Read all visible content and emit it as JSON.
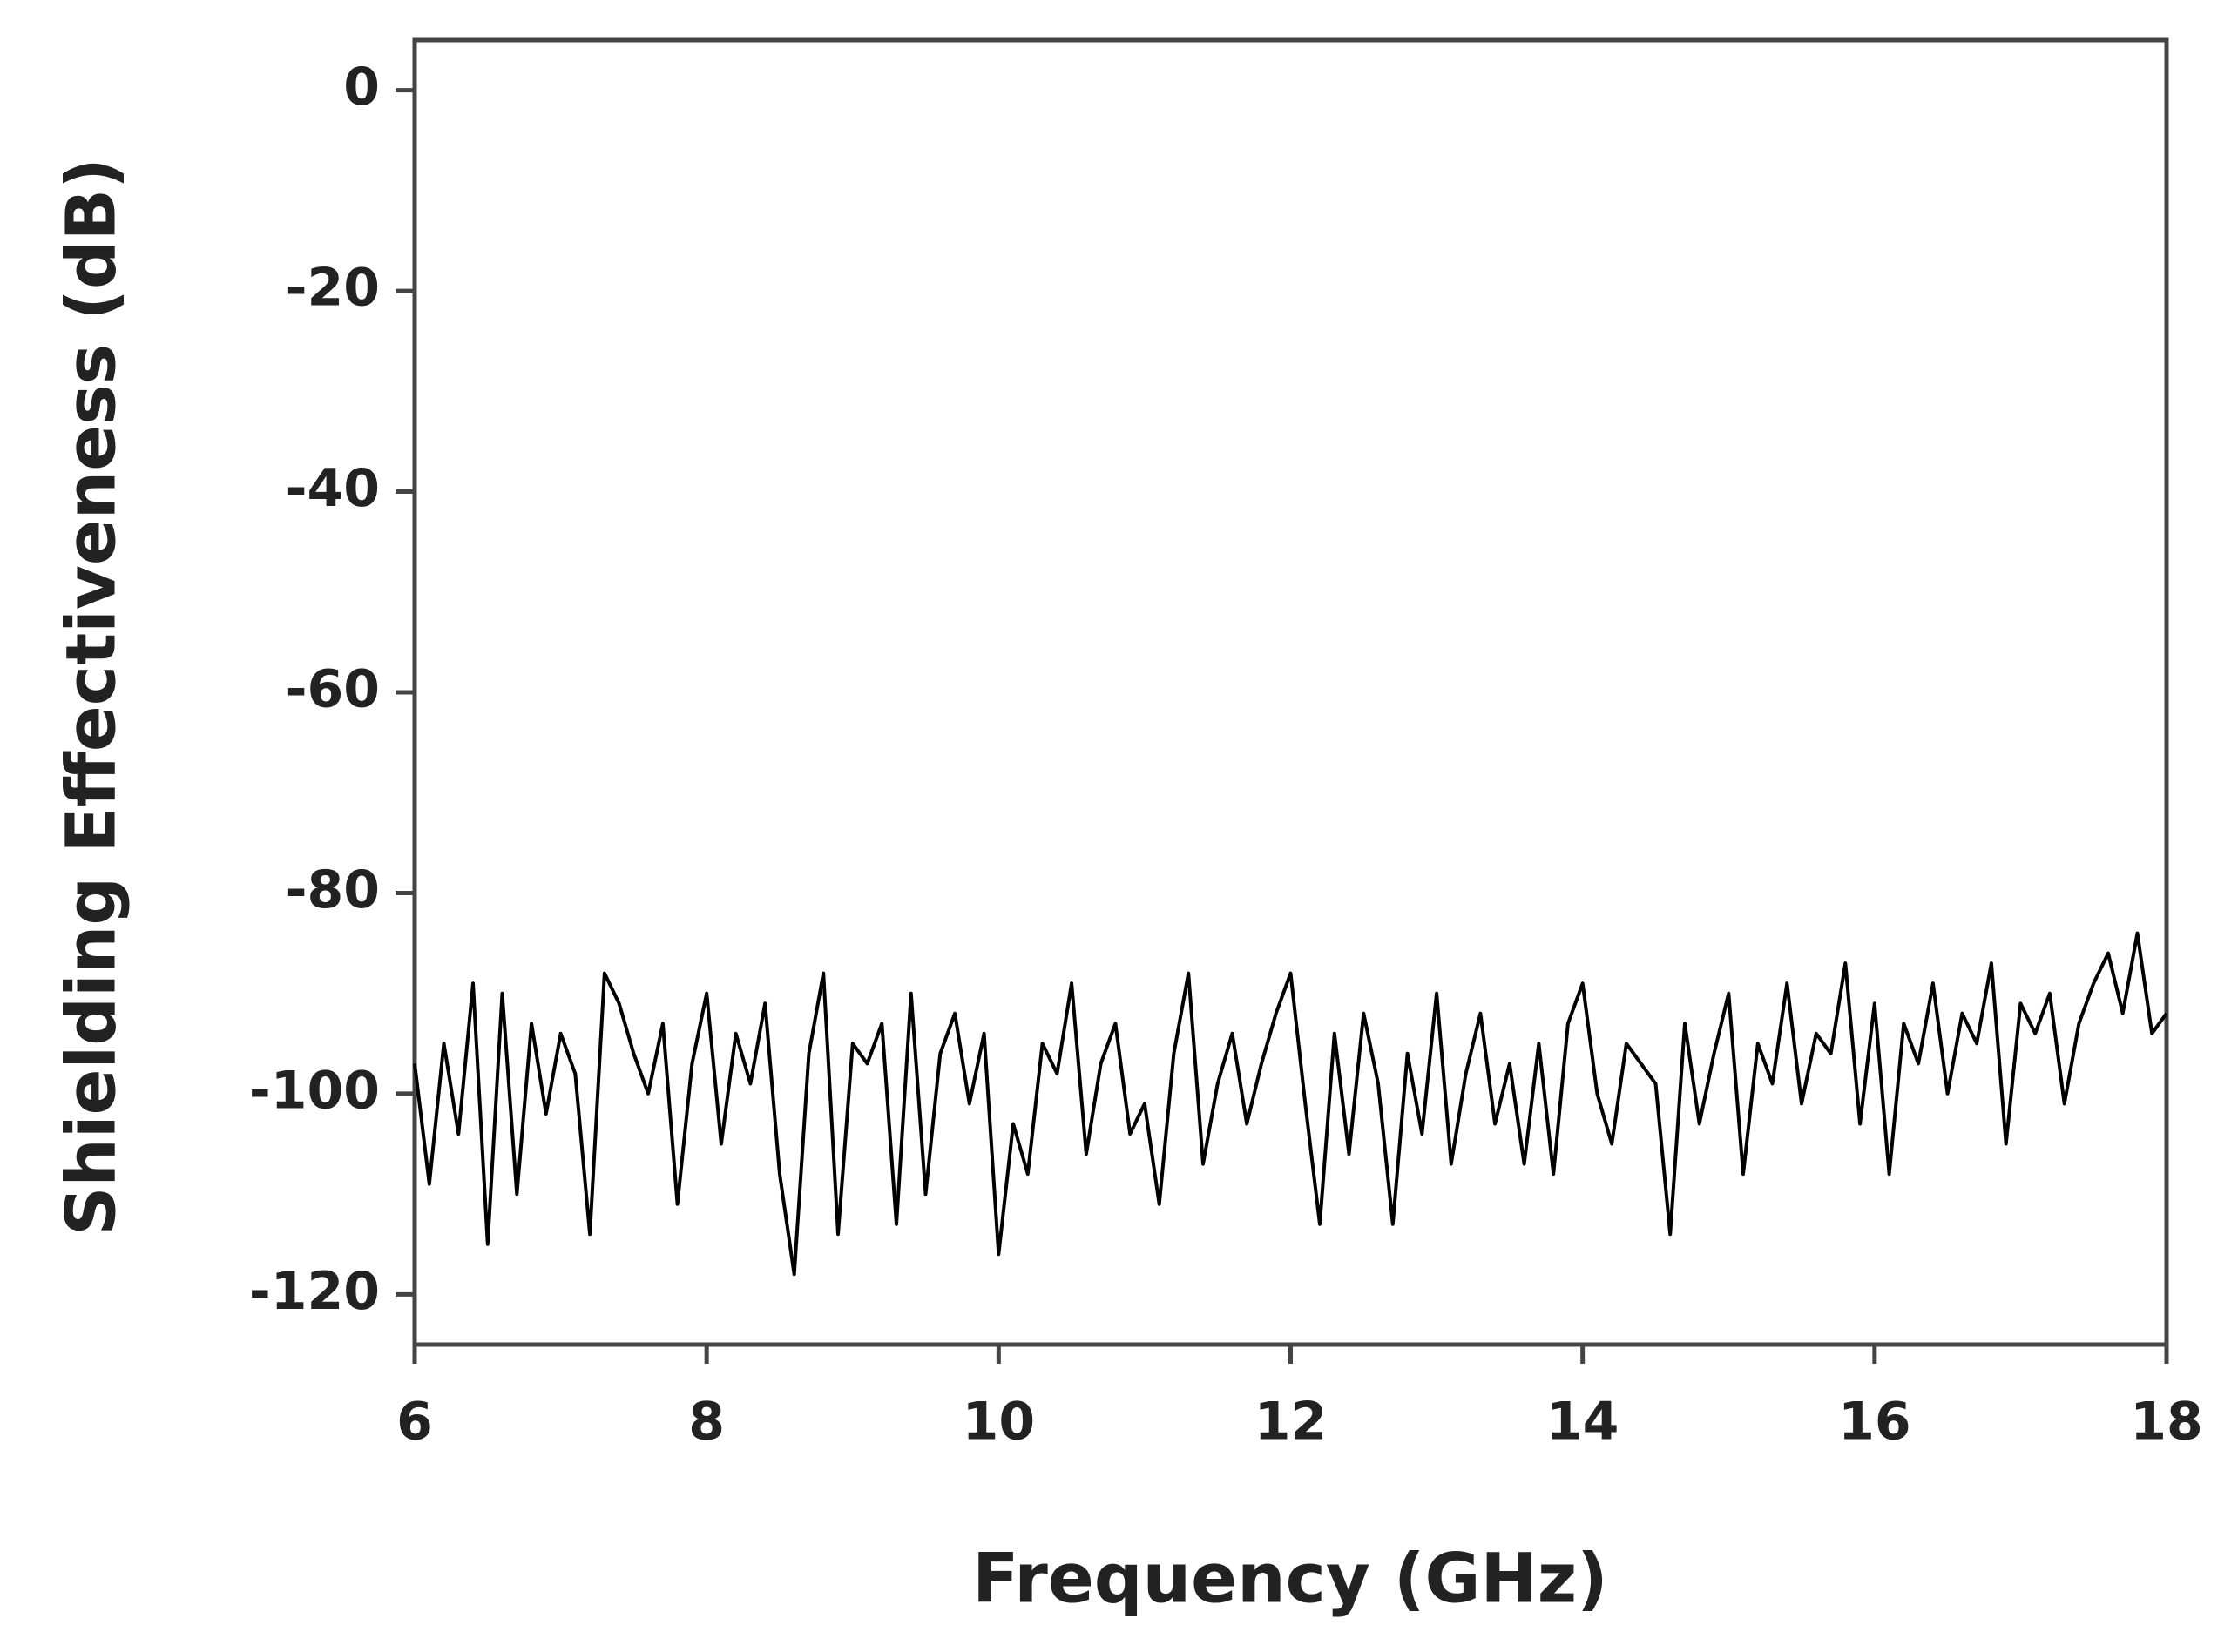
{
  "chart_data": {
    "type": "line",
    "x_label": "Frequency (GHz)",
    "y_label": "Shielding Effectiveness (dB)",
    "x": [
      6,
      6.1,
      6.2,
      6.3,
      6.4,
      6.5,
      6.6,
      6.7,
      6.8,
      6.9,
      7,
      7.1,
      7.2,
      7.3,
      7.4,
      7.5,
      7.6,
      7.7,
      7.8,
      7.9,
      8,
      8.1,
      8.2,
      8.3,
      8.4,
      8.5,
      8.6,
      8.7,
      8.8,
      8.9,
      9,
      9.1,
      9.2,
      9.3,
      9.4,
      9.5,
      9.6,
      9.7,
      9.8,
      9.9,
      10,
      10.1,
      10.2,
      10.3,
      10.4,
      10.5,
      10.6,
      10.7,
      10.8,
      10.9,
      11,
      11.1,
      11.2,
      11.3,
      11.4,
      11.5,
      11.6,
      11.7,
      11.8,
      11.9,
      12,
      12.1,
      12.2,
      12.3,
      12.4,
      12.5,
      12.6,
      12.7,
      12.8,
      12.9,
      13,
      13.1,
      13.2,
      13.3,
      13.4,
      13.5,
      13.6,
      13.7,
      13.8,
      13.9,
      14,
      14.1,
      14.2,
      14.3,
      14.4,
      14.5,
      14.6,
      14.7,
      14.8,
      14.9,
      15,
      15.1,
      15.2,
      15.3,
      15.4,
      15.5,
      15.6,
      15.7,
      15.8,
      15.9,
      16,
      16.1,
      16.2,
      16.3,
      16.4,
      16.5,
      16.6,
      16.7,
      16.8,
      16.9,
      17,
      17.1,
      17.2,
      17.3,
      17.4,
      17.5,
      17.6,
      17.7,
      17.8,
      17.9,
      18
    ],
    "values": [
      -97,
      -109,
      -95,
      -104,
      -89,
      -115,
      -90,
      -110,
      -93,
      -102,
      -94,
      -98,
      -114,
      -88,
      -91,
      -96,
      -100,
      -93,
      -111,
      -97,
      -90,
      -105,
      -94,
      -99,
      -91,
      -108,
      -118,
      -96,
      -88,
      -114,
      -95,
      -97,
      -93,
      -113,
      -90,
      -110,
      -96,
      -92,
      -101,
      -94,
      -116,
      -103,
      -108,
      -95,
      -98,
      -89,
      -106,
      -97,
      -93,
      -104,
      -101,
      -111,
      -96,
      -88,
      -107,
      -99,
      -94,
      -103,
      -97,
      -92,
      -88,
      -101,
      -113,
      -94,
      -106,
      -92,
      -99,
      -113,
      -96,
      -104,
      -90,
      -107,
      -98,
      -92,
      -103,
      -97,
      -107,
      -95,
      -108,
      -93,
      -89,
      -100,
      -105,
      -95,
      -97,
      -99,
      -114,
      -93,
      -103,
      -96,
      -90,
      -108,
      -95,
      -99,
      -89,
      -101,
      -94,
      -96,
      -87,
      -103,
      -91,
      -108,
      -93,
      -97,
      -89,
      -100,
      -92,
      -95,
      -87,
      -105,
      -91,
      -94,
      -90,
      -101,
      -93,
      -89,
      -86,
      -92,
      -84,
      -94,
      -92
    ],
    "color": "#000000",
    "xlim": [
      6,
      18
    ],
    "xticks": [
      6,
      8,
      10,
      12,
      14,
      16,
      18
    ],
    "ylim": [
      -125,
      5
    ],
    "yticks": [
      0,
      -20,
      -40,
      -60,
      -80,
      -100,
      -120
    ]
  }
}
